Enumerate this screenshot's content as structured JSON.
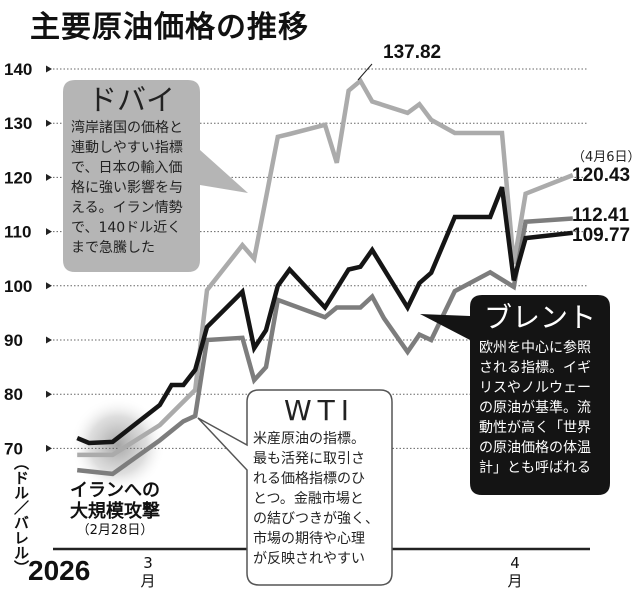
{
  "title": "主要原油価格の推移",
  "unit_label": "（ドル／バレル）",
  "year_label": "2026",
  "months": [
    {
      "num": "3",
      "kanji": "月"
    },
    {
      "num": "4",
      "kanji": "月"
    }
  ],
  "event": {
    "line1": "イランへの",
    "line2": "大規模攻撃",
    "date": "（2月28日）"
  },
  "peak_label": "137.82",
  "end_date_label": "（4月6日）",
  "end_labels": {
    "dubai": "120.43",
    "wti": "112.41",
    "brent": "109.77"
  },
  "callouts": {
    "dubai": {
      "title": "ドバイ",
      "lines": [
        "湾岸諸国の価格と",
        "連動しやすい指標",
        "で、日本の輸入価",
        "格に強い影響を与",
        "える。イラン情勢",
        "で、140ドル近く",
        "まで急騰した"
      ]
    },
    "wti": {
      "title": "WTI",
      "lines": [
        "米産原油の指標。",
        "最も活発に取引さ",
        "れる価格指標のひ",
        "とつ。金融市場と",
        "の結びつきが強く、",
        "市場の期待や心理",
        "が反映されやすい"
      ]
    },
    "brent": {
      "title": "ブレント",
      "lines": [
        "欧州を中心に参照",
        "される指標。イギ",
        "リスやノルウェー",
        "の原油が基準。流",
        "動性が高く「世界",
        "の原油価格の体温",
        "計」とも呼ばれる"
      ]
    }
  },
  "chart_data": {
    "type": "line",
    "title": "主要原油価格の推移",
    "ylabel": "（ドル／バレル）",
    "ylim": [
      65,
      140
    ],
    "yticks": [
      70,
      80,
      90,
      100,
      110,
      120,
      130,
      140
    ],
    "xlabel": "",
    "xrange": [
      "2026-02-23",
      "2026-04-06"
    ],
    "grid": "horizontal dotted",
    "series": [
      {
        "name": "ドバイ",
        "color": "#ababab",
        "points": [
          [
            "2026-02-23",
            68.8
          ],
          [
            "2026-02-26",
            68.8
          ],
          [
            "2026-03-02",
            74.3
          ],
          [
            "2026-03-05",
            80.8
          ],
          [
            "2026-03-06",
            99.2
          ],
          [
            "2026-03-09",
            107.5
          ],
          [
            "2026-03-10",
            105.0
          ],
          [
            "2026-03-12",
            127.5
          ],
          [
            "2026-03-13",
            128.0
          ],
          [
            "2026-03-16",
            129.7
          ],
          [
            "2026-03-17",
            122.7
          ],
          [
            "2026-03-18",
            136.0
          ],
          [
            "2026-03-19",
            137.82
          ],
          [
            "2026-03-20",
            134.0
          ],
          [
            "2026-03-23",
            131.9
          ],
          [
            "2026-03-24",
            133.5
          ],
          [
            "2026-03-25",
            130.6
          ],
          [
            "2026-03-27",
            128.2
          ],
          [
            "2026-03-31",
            128.2
          ],
          [
            "2026-04-01",
            104.0
          ],
          [
            "2026-04-02",
            117.0
          ],
          [
            "2026-04-06",
            120.43
          ]
        ]
      },
      {
        "name": "WTI",
        "color": "#7d7d7d",
        "points": [
          [
            "2026-02-23",
            66.0
          ],
          [
            "2026-02-26",
            65.3
          ],
          [
            "2026-03-02",
            71.5
          ],
          [
            "2026-03-04",
            75.0
          ],
          [
            "2026-03-05",
            76.0
          ],
          [
            "2026-03-06",
            90.0
          ],
          [
            "2026-03-09",
            90.4
          ],
          [
            "2026-03-10",
            82.6
          ],
          [
            "2026-03-11",
            85.0
          ],
          [
            "2026-03-12",
            97.4
          ],
          [
            "2026-03-16",
            94.2
          ],
          [
            "2026-03-17",
            96.0
          ],
          [
            "2026-03-19",
            96.0
          ],
          [
            "2026-03-20",
            98.0
          ],
          [
            "2026-03-21",
            94.0
          ],
          [
            "2026-03-23",
            87.8
          ],
          [
            "2026-03-24",
            91.0
          ],
          [
            "2026-03-25",
            90.0
          ],
          [
            "2026-03-27",
            99.0
          ],
          [
            "2026-03-30",
            102.5
          ],
          [
            "2026-04-01",
            99.8
          ],
          [
            "2026-04-02",
            111.8
          ],
          [
            "2026-04-06",
            112.41
          ]
        ]
      },
      {
        "name": "ブレント",
        "color": "#151515",
        "points": [
          [
            "2026-02-23",
            71.9
          ],
          [
            "2026-02-24",
            71.0
          ],
          [
            "2026-02-26",
            71.2
          ],
          [
            "2026-03-02",
            78.0
          ],
          [
            "2026-03-03",
            81.7
          ],
          [
            "2026-03-04",
            81.7
          ],
          [
            "2026-03-05",
            84.5
          ],
          [
            "2026-03-06",
            92.4
          ],
          [
            "2026-03-09",
            98.9
          ],
          [
            "2026-03-10",
            88.5
          ],
          [
            "2026-03-11",
            91.8
          ],
          [
            "2026-03-12",
            100.0
          ],
          [
            "2026-03-13",
            103.0
          ],
          [
            "2026-03-16",
            96.0
          ],
          [
            "2026-03-18",
            103.0
          ],
          [
            "2026-03-19",
            103.5
          ],
          [
            "2026-03-20",
            106.6
          ],
          [
            "2026-03-23",
            96.0
          ],
          [
            "2026-03-24",
            100.5
          ],
          [
            "2026-03-25",
            102.4
          ],
          [
            "2026-03-27",
            112.7
          ],
          [
            "2026-03-30",
            112.7
          ],
          [
            "2026-03-31",
            118.2
          ],
          [
            "2026-04-01",
            101.0
          ],
          [
            "2026-04-02",
            108.8
          ],
          [
            "2026-04-06",
            109.77
          ]
        ]
      }
    ],
    "annotations": [
      "137.82",
      "（4月6日）",
      "120.43",
      "112.41",
      "109.77",
      "イランへの大規模攻撃（2月28日）"
    ]
  }
}
